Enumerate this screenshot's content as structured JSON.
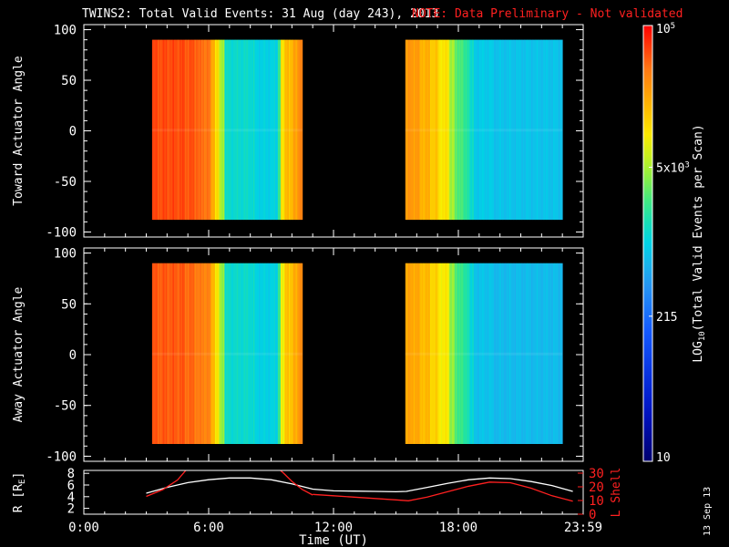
{
  "header": {
    "title": "TWINS2: Total Valid Events: 31 Aug (day 243), 2013",
    "note": "NOTE: Data Preliminary - Not validated"
  },
  "footer": {
    "date_stamp": "13 Sep 13"
  },
  "colors": {
    "background": "#000000",
    "axes": "#ffffff",
    "note_text": "#ff2020",
    "r_line": "#ffffff",
    "lshell_line": "#ff2020"
  },
  "chart_data": [
    {
      "type": "heatmap",
      "name": "toward",
      "ylabel": "Toward Actuator Angle",
      "ylim": [
        -105,
        105
      ],
      "yticks": [
        100,
        50,
        0,
        -50,
        -100
      ],
      "xlim": [
        0,
        24
      ],
      "data_blocks": [
        {
          "x_start": 3.28,
          "x_end": 10.5,
          "y_min": -88,
          "y_max": 90
        },
        {
          "x_start": 15.45,
          "x_end": 23.0,
          "y_min": -88,
          "y_max": 90
        }
      ],
      "log_values_by_hour": [
        [
          3.28,
          4.75
        ],
        [
          4.8,
          4.72
        ],
        [
          5.3,
          4.7
        ],
        [
          5.5,
          4.62
        ],
        [
          6.2,
          4.68
        ],
        [
          6.0,
          4.5
        ],
        [
          6.05,
          4.35
        ],
        [
          6.25,
          4.05
        ],
        [
          6.45,
          3.7
        ],
        [
          6.7,
          3.1
        ],
        [
          8.2,
          3.0
        ],
        [
          9.3,
          3.4
        ],
        [
          9.4,
          4.0
        ],
        [
          9.6,
          4.3
        ],
        [
          9.8,
          4.2
        ],
        [
          10.0,
          4.4
        ],
        [
          10.3,
          4.5
        ],
        [
          15.45,
          4.42
        ],
        [
          16.1,
          4.3
        ],
        [
          16.6,
          4.18
        ],
        [
          17.0,
          4.02
        ],
        [
          17.5,
          3.7
        ],
        [
          17.8,
          3.45
        ],
        [
          18.2,
          3.3
        ],
        [
          18.5,
          3.1
        ],
        [
          18.7,
          2.95
        ],
        [
          19.6,
          2.9
        ],
        [
          23.0,
          2.9
        ]
      ]
    },
    {
      "type": "heatmap",
      "name": "away",
      "ylabel": "Away Actuator Angle",
      "ylim": [
        -105,
        105
      ],
      "yticks": [
        100,
        50,
        0,
        -50,
        -100
      ],
      "xlim": [
        0,
        24
      ],
      "data_blocks": [
        {
          "x_start": 3.28,
          "x_end": 10.5,
          "y_min": -88,
          "y_max": 90
        },
        {
          "x_start": 15.45,
          "x_end": 23.0,
          "y_min": -88,
          "y_max": 90
        }
      ],
      "log_values_by_hour": [
        [
          3.28,
          4.7
        ],
        [
          4.8,
          4.65
        ],
        [
          5.3,
          4.6
        ],
        [
          5.5,
          4.55
        ],
        [
          6.2,
          4.62
        ],
        [
          6.0,
          4.45
        ],
        [
          6.05,
          4.3
        ],
        [
          6.25,
          4.0
        ],
        [
          6.45,
          3.65
        ],
        [
          6.7,
          3.1
        ],
        [
          8.2,
          3.0
        ],
        [
          9.3,
          3.4
        ],
        [
          9.4,
          3.9
        ],
        [
          9.6,
          4.25
        ],
        [
          9.8,
          4.15
        ],
        [
          10.0,
          4.35
        ],
        [
          10.3,
          4.45
        ],
        [
          15.45,
          4.35
        ],
        [
          16.1,
          4.25
        ],
        [
          16.6,
          4.12
        ],
        [
          17.0,
          3.98
        ],
        [
          17.5,
          3.65
        ],
        [
          17.8,
          3.4
        ],
        [
          18.2,
          3.25
        ],
        [
          18.5,
          3.05
        ],
        [
          18.7,
          2.9
        ],
        [
          19.6,
          2.85
        ],
        [
          23.0,
          2.85
        ]
      ]
    },
    {
      "type": "line",
      "name": "ephemeris",
      "xlabel": "Time (UT)",
      "xlim": [
        0,
        24
      ],
      "xticks": [
        "0:00",
        "6:00",
        "12:00",
        "18:00",
        "23:59"
      ],
      "ylabel_left": "R [R",
      "ylabel_left_sub": "E",
      "ylabel_left_end": "]",
      "ylim_left": [
        1,
        8.5
      ],
      "yticks_left": [
        8,
        6,
        4,
        2
      ],
      "ylabel_right": "L Shell",
      "ylim_right": [
        0,
        32
      ],
      "yticks_right": [
        30,
        20,
        10,
        0
      ],
      "series": [
        {
          "axis": "left",
          "x": [
            3.0,
            4.0,
            5.0,
            6.0,
            7.0,
            8.0,
            9.0,
            10.0,
            11.0,
            12.0,
            13.0,
            14.0,
            15.0,
            15.5,
            16.5,
            17.5,
            18.5,
            19.5,
            20.5,
            21.5,
            22.5,
            23.5
          ],
          "y": [
            4.6,
            5.6,
            6.4,
            6.9,
            7.2,
            7.2,
            6.9,
            6.2,
            5.3,
            5.0,
            4.95,
            4.9,
            4.85,
            4.9,
            5.6,
            6.3,
            6.9,
            7.2,
            7.1,
            6.6,
            5.9,
            4.9
          ]
        },
        {
          "axis": "right",
          "segments": [
            {
              "x": [
                3.0,
                3.8,
                4.5,
                4.9,
                5.1
              ],
              "y": [
                13,
                18,
                25,
                32,
                34
              ]
            },
            {
              "x": [
                9.3,
                9.6,
                10.0,
                10.5,
                11.0
              ],
              "y": [
                34,
                30,
                24,
                18,
                14
              ]
            },
            {
              "x": [
                11.0,
                12.0,
                13.0,
                14.0,
                15.0,
                15.6,
                16.5,
                17.5,
                18.5,
                19.5,
                20.5,
                21.5,
                22.5,
                23.5
              ],
              "y": [
                14.5,
                13.5,
                12.5,
                11.5,
                10.5,
                9.8,
                12.5,
                16.5,
                20.5,
                23.5,
                23.0,
                19.0,
                13.5,
                9.5
              ]
            }
          ]
        }
      ]
    },
    {
      "type": "colorbar",
      "name": "colorbar",
      "label": "LOG",
      "label_sub": "10",
      "label_end": "(Total Valid Events per Scan)",
      "log_range": [
        1,
        5
      ],
      "ticks": [
        {
          "value": 5,
          "base": "10",
          "exp": "5"
        },
        {
          "value": 3.699,
          "base": "5x10",
          "exp": "3"
        },
        {
          "value": 2.332,
          "base": "215",
          "exp": ""
        },
        {
          "value": 1,
          "base": "10",
          "exp": ""
        }
      ]
    }
  ]
}
